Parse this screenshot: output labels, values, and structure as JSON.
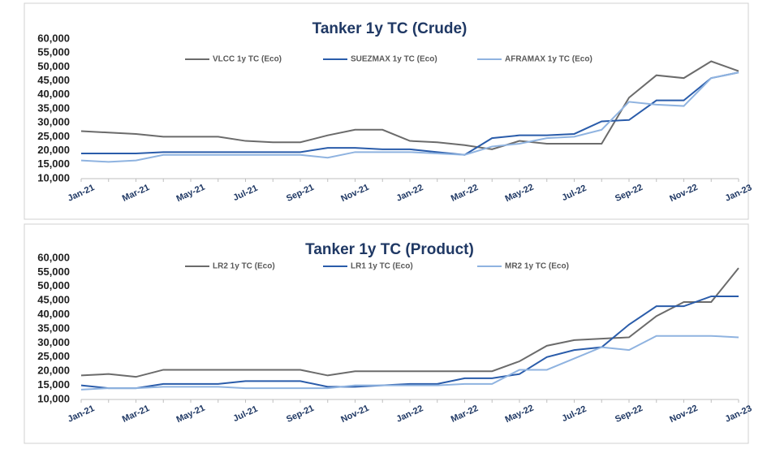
{
  "chart_data": [
    {
      "type": "line",
      "title": "Tanker 1y TC (Crude)",
      "categories": [
        "Jan-21",
        null,
        "Mar-21",
        null,
        "May-21",
        null,
        "Jul-21",
        null,
        "Sep-21",
        null,
        "Nov-21",
        null,
        "Jan-22",
        null,
        "Mar-22",
        null,
        "May-22",
        null,
        "Jul-22",
        null,
        "Sep-22",
        null,
        "Nov-22",
        null,
        "Jan-23"
      ],
      "series": [
        {
          "name": "VLCC 1y TC (Eco)",
          "color": "#6b6b6b",
          "values": [
            27000,
            26500,
            26000,
            25000,
            25000,
            25000,
            23500,
            23000,
            23000,
            25500,
            27500,
            27500,
            23500,
            23000,
            22000,
            20500,
            23500,
            22500,
            22500,
            22500,
            39000,
            47000,
            46000,
            52000,
            48500
          ]
        },
        {
          "name": "SUEZMAX 1y TC (Eco)",
          "color": "#2a5caa",
          "values": [
            19000,
            19000,
            19000,
            19500,
            19500,
            19500,
            19500,
            19500,
            19500,
            21000,
            21000,
            20500,
            20500,
            19500,
            18500,
            24500,
            25500,
            25500,
            26000,
            30500,
            31000,
            38000,
            38000,
            46000,
            48000
          ]
        },
        {
          "name": "AFRAMAX 1y TC (Eco)",
          "color": "#8fb3e0",
          "values": [
            16500,
            16000,
            16500,
            18500,
            18500,
            18500,
            18500,
            18500,
            18500,
            17500,
            19500,
            19500,
            19500,
            19000,
            18500,
            21500,
            22500,
            24500,
            25000,
            27500,
            37500,
            36500,
            36000,
            46000,
            48000
          ]
        }
      ],
      "ylim": [
        10000,
        60000
      ],
      "yticks": [
        {
          "value": 10000,
          "label": "10,000"
        },
        {
          "value": 15000,
          "label": "15,000"
        },
        {
          "value": 20000,
          "label": "20,000"
        },
        {
          "value": 25000,
          "label": "25,000"
        },
        {
          "value": 30000,
          "label": "30,000"
        },
        {
          "value": 35000,
          "label": "35,000"
        },
        {
          "value": 40000,
          "label": "40,000"
        },
        {
          "value": 45000,
          "label": "45,000"
        },
        {
          "value": 50000,
          "label": "50,000"
        },
        {
          "value": 55000,
          "label": "55,000"
        },
        {
          "value": 60000,
          "label": "60,000"
        }
      ],
      "legend": "top"
    },
    {
      "type": "line",
      "title": "Tanker 1y TC (Product)",
      "categories": [
        "Jan-21",
        null,
        "Mar-21",
        null,
        "May-21",
        null,
        "Jul-21",
        null,
        "Sep-21",
        null,
        "Nov-21",
        null,
        "Jan-22",
        null,
        "Mar-22",
        null,
        "May-22",
        null,
        "Jul-22",
        null,
        "Sep-22",
        null,
        "Nov-22",
        null,
        "Jan-23"
      ],
      "series": [
        {
          "name": "LR2 1y TC (Eco)",
          "color": "#6b6b6b",
          "values": [
            18500,
            19000,
            18000,
            20500,
            20500,
            20500,
            20500,
            20500,
            20500,
            18500,
            20000,
            20000,
            20000,
            20000,
            20000,
            20000,
            23500,
            29000,
            31000,
            31500,
            32000,
            39500,
            44500,
            44500,
            56500
          ]
        },
        {
          "name": "LR1 1y TC (Eco)",
          "color": "#2a5caa",
          "values": [
            15000,
            14000,
            14000,
            15500,
            15500,
            15500,
            16500,
            16500,
            16500,
            14500,
            14500,
            15000,
            15500,
            15500,
            17500,
            17500,
            19000,
            25000,
            27500,
            28500,
            36500,
            43000,
            43000,
            46500,
            46500
          ]
        },
        {
          "name": "MR2 1y TC (Eco)",
          "color": "#8fb3e0",
          "values": [
            13500,
            14000,
            14000,
            14500,
            14500,
            14500,
            14000,
            14000,
            14000,
            14000,
            15000,
            15000,
            15000,
            15000,
            15500,
            15500,
            20500,
            20500,
            24500,
            28500,
            27500,
            32500,
            32500,
            32500,
            32000
          ]
        }
      ],
      "ylim": [
        10000,
        60000
      ],
      "yticks": [
        {
          "value": 10000,
          "label": "10,000"
        },
        {
          "value": 15000,
          "label": "15,000"
        },
        {
          "value": 20000,
          "label": "20,000"
        },
        {
          "value": 25000,
          "label": "25,000"
        },
        {
          "value": 30000,
          "label": "30,000"
        },
        {
          "value": 35000,
          "label": "35,000"
        },
        {
          "value": 40000,
          "label": "40,000"
        },
        {
          "value": 45000,
          "label": "45,000"
        },
        {
          "value": 50000,
          "label": "50,000"
        },
        {
          "value": 55000,
          "label": "55,000"
        },
        {
          "value": 60000,
          "label": "60,000"
        }
      ],
      "legend": "top"
    }
  ]
}
